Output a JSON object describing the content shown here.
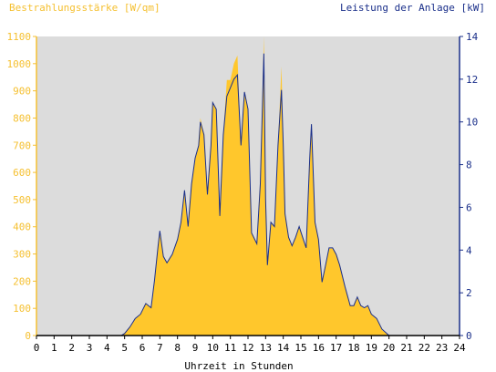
{
  "chart_data": {
    "type": "area",
    "left_axis_label": "Bestrahlungsstärke [W/qm]",
    "right_axis_label": "Leistung der Anlage [kW]",
    "xlabel": "Uhrzeit in Stunden",
    "x_ticks": [
      "0",
      "1",
      "2",
      "3",
      "4",
      "5",
      "6",
      "7",
      "8",
      "9",
      "10",
      "11",
      "12",
      "13",
      "14",
      "15",
      "16",
      "17",
      "18",
      "19",
      "20",
      "21",
      "22",
      "23",
      "24"
    ],
    "y_left_ticks": [
      "0",
      "100",
      "200",
      "300",
      "400",
      "500",
      "600",
      "700",
      "800",
      "900",
      "1000",
      "1100"
    ],
    "y_right_ticks": [
      "0",
      "2",
      "4",
      "6",
      "8",
      "10",
      "12",
      "14"
    ],
    "xlim": [
      0,
      24
    ],
    "ylim_left": [
      0,
      1100
    ],
    "ylim_right": [
      0,
      14
    ],
    "grid": false,
    "colors": {
      "plot_background": "#dcdcdc",
      "irradiance_fill": "#ffc72c",
      "power_line": "#1a2f8a",
      "left_axis": "#f5c031",
      "right_axis": "#1a2f8a"
    },
    "irradiance": {
      "x": [
        0,
        4.8,
        5.0,
        5.3,
        5.6,
        5.9,
        6.2,
        6.5,
        6.7,
        6.9,
        7.0,
        7.2,
        7.4,
        7.7,
        8.0,
        8.2,
        8.4,
        8.6,
        8.8,
        9.0,
        9.2,
        9.3,
        9.5,
        9.7,
        9.9,
        10.0,
        10.2,
        10.4,
        10.6,
        10.8,
        11.0,
        11.2,
        11.4,
        11.6,
        11.8,
        12.0,
        12.2,
        12.5,
        12.7,
        12.9,
        13.0,
        13.1,
        13.3,
        13.5,
        13.7,
        13.9,
        14.0,
        14.1,
        14.3,
        14.5,
        14.7,
        14.9,
        15.1,
        15.3,
        15.5,
        15.6,
        15.8,
        16.0,
        16.2,
        16.4,
        16.6,
        16.8,
        17.0,
        17.2,
        17.5,
        17.8,
        18.0,
        18.2,
        18.4,
        18.6,
        18.8,
        19.0,
        19.3,
        19.6,
        20.0,
        20.5,
        24
      ],
      "y": [
        0,
        0,
        10,
        30,
        60,
        80,
        120,
        100,
        200,
        330,
        380,
        290,
        270,
        300,
        350,
        420,
        530,
        400,
        560,
        650,
        700,
        800,
        740,
        520,
        700,
        860,
        830,
        440,
        740,
        940,
        940,
        1000,
        1030,
        700,
        900,
        830,
        380,
        340,
        560,
        1100,
        500,
        260,
        420,
        400,
        700,
        990,
        700,
        450,
        360,
        330,
        360,
        400,
        360,
        320,
        650,
        780,
        420,
        350,
        200,
        260,
        320,
        320,
        300,
        260,
        180,
        110,
        110,
        140,
        110,
        100,
        110,
        80,
        60,
        20,
        0,
        0,
        0
      ]
    },
    "power": {
      "x": [
        0,
        4.8,
        5.0,
        5.3,
        5.6,
        5.9,
        6.2,
        6.5,
        6.7,
        6.9,
        7.0,
        7.2,
        7.4,
        7.7,
        8.0,
        8.2,
        8.4,
        8.6,
        8.8,
        9.0,
        9.2,
        9.3,
        9.5,
        9.7,
        9.9,
        10.0,
        10.2,
        10.4,
        10.6,
        10.8,
        11.0,
        11.2,
        11.4,
        11.6,
        11.8,
        12.0,
        12.2,
        12.5,
        12.7,
        12.9,
        13.0,
        13.1,
        13.3,
        13.5,
        13.7,
        13.9,
        14.0,
        14.1,
        14.3,
        14.5,
        14.7,
        14.9,
        15.1,
        15.3,
        15.5,
        15.6,
        15.8,
        16.0,
        16.2,
        16.4,
        16.6,
        16.8,
        17.0,
        17.2,
        17.5,
        17.8,
        18.0,
        18.2,
        18.4,
        18.6,
        18.8,
        19.0,
        19.3,
        19.6,
        20.0,
        20.5,
        24
      ],
      "y": [
        0,
        0,
        0.1,
        0.4,
        0.8,
        1.0,
        1.5,
        1.3,
        2.6,
        4.2,
        4.9,
        3.7,
        3.4,
        3.8,
        4.5,
        5.3,
        6.8,
        5.1,
        7.1,
        8.3,
        8.9,
        10.0,
        9.4,
        6.6,
        8.9,
        10.9,
        10.6,
        5.6,
        9.4,
        11.2,
        11.6,
        12.0,
        12.2,
        8.9,
        11.4,
        10.6,
        4.8,
        4.3,
        7.1,
        13.2,
        6.4,
        3.3,
        5.3,
        5.1,
        8.9,
        11.5,
        8.9,
        5.7,
        4.6,
        4.2,
        4.6,
        5.1,
        4.6,
        4.1,
        8.3,
        9.9,
        5.3,
        4.5,
        2.5,
        3.3,
        4.1,
        4.1,
        3.8,
        3.3,
        2.3,
        1.4,
        1.4,
        1.8,
        1.4,
        1.3,
        1.4,
        1.0,
        0.8,
        0.3,
        0,
        0,
        0
      ]
    }
  }
}
